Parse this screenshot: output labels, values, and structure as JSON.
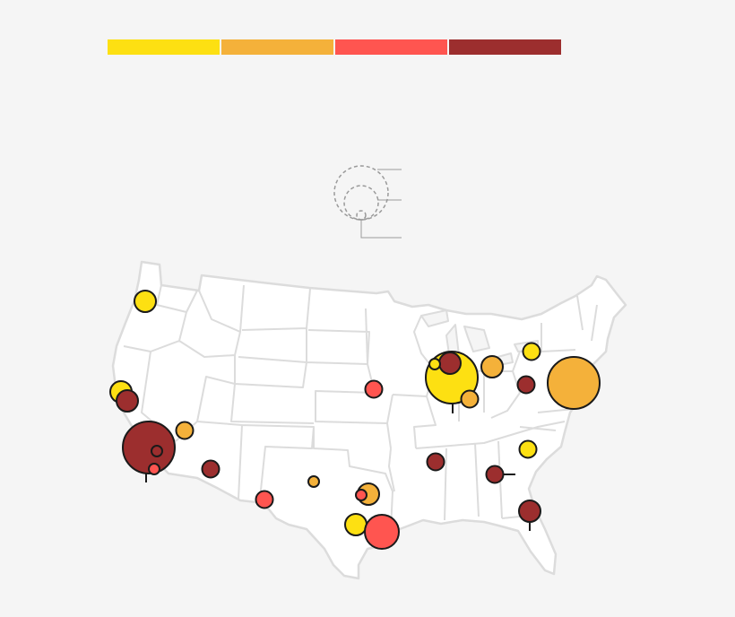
{
  "colors": {
    "background": "#f5f5f5",
    "land": "#ffffff",
    "border": "#dcdcdc",
    "outline": "#1a1a1a",
    "legend_guide": "#9a9a9a"
  },
  "legend": {
    "scale": [
      {
        "color": "#fde012"
      },
      {
        "color": "#f4b13a"
      },
      {
        "color": "#ff5550"
      },
      {
        "color": "#9c2e2e"
      }
    ],
    "size_key_circles": 3
  },
  "map": {
    "region": "contiguous-united-states",
    "markers": [
      {
        "id": "portland",
        "color": "#fde012",
        "size": 3
      },
      {
        "id": "sacramento",
        "color": "#fde012",
        "size": 3
      },
      {
        "id": "san-francisco",
        "color": "#9c2e2e",
        "size": 3
      },
      {
        "id": "los-angeles",
        "color": "#9c2e2e",
        "size": 7
      },
      {
        "id": "los-angeles-inner-1",
        "color": "#9c2e2e",
        "size": 1
      },
      {
        "id": "los-angeles-inner-2",
        "color": "#ff5550",
        "size": 1
      },
      {
        "id": "las-vegas",
        "color": "#f4b13a",
        "size": 2
      },
      {
        "id": "phoenix",
        "color": "#9c2e2e",
        "size": 2
      },
      {
        "id": "el-paso",
        "color": "#ff5550",
        "size": 2
      },
      {
        "id": "kansas-city",
        "color": "#ff5550",
        "size": 2
      },
      {
        "id": "midland",
        "color": "#f4b13a",
        "size": 1
      },
      {
        "id": "dallas",
        "color": "#f4b13a",
        "size": 3
      },
      {
        "id": "dallas-inner",
        "color": "#ff5550",
        "size": 1
      },
      {
        "id": "austin",
        "color": "#fde012",
        "size": 3
      },
      {
        "id": "houston",
        "color": "#ff5550",
        "size": 5
      },
      {
        "id": "chicago",
        "color": "#fde012",
        "size": 7
      },
      {
        "id": "milwaukee",
        "color": "#9c2e2e",
        "size": 3
      },
      {
        "id": "rockford",
        "color": "#fde012",
        "size": 1
      },
      {
        "id": "indianapolis",
        "color": "#f4b13a",
        "size": 2
      },
      {
        "id": "detroit",
        "color": "#f4b13a",
        "size": 3
      },
      {
        "id": "pittsburgh",
        "color": "#9c2e2e",
        "size": 2
      },
      {
        "id": "buffalo",
        "color": "#fde012",
        "size": 2
      },
      {
        "id": "new-york",
        "color": "#f4b13a",
        "size": 7
      },
      {
        "id": "memphis",
        "color": "#9c2e2e",
        "size": 2
      },
      {
        "id": "atlanta",
        "color": "#9c2e2e",
        "size": 2
      },
      {
        "id": "charlotte",
        "color": "#fde012",
        "size": 2
      },
      {
        "id": "orlando",
        "color": "#9c2e2e",
        "size": 3
      }
    ]
  }
}
